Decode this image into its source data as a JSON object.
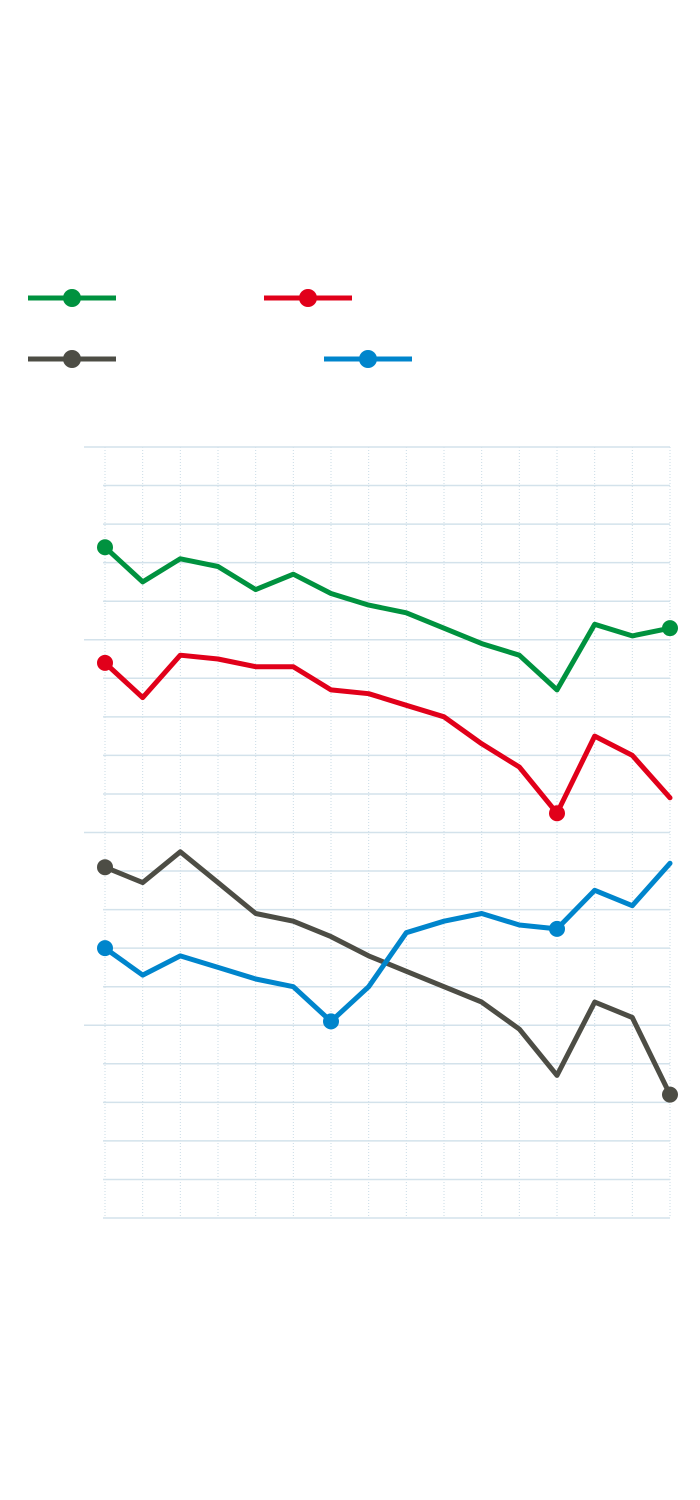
{
  "chart_data": {
    "type": "line",
    "x": [
      1,
      2,
      3,
      4,
      5,
      6,
      7,
      8,
      9,
      10,
      11,
      12,
      13,
      14,
      15,
      16
    ],
    "ylim": [
      0,
      20
    ],
    "grid": true,
    "legend_placement": "top-left",
    "series": [
      {
        "color": "#00923f",
        "values": [
          17.4,
          16.5,
          17.1,
          16.9,
          16.3,
          16.7,
          16.2,
          15.9,
          15.7,
          15.3,
          14.9,
          14.6,
          13.7,
          15.4,
          15.1,
          15.3
        ]
      },
      {
        "color": "#e1001a",
        "values": [
          14.4,
          13.5,
          14.6,
          14.5,
          14.3,
          14.3,
          13.7,
          13.6,
          13.3,
          13.0,
          12.3,
          11.7,
          10.5,
          12.5,
          12.0,
          10.9
        ]
      },
      {
        "color": "#4d4d45",
        "values": [
          9.1,
          8.7,
          9.5,
          8.7,
          7.9,
          7.7,
          7.3,
          6.8,
          6.4,
          6.0,
          5.6,
          4.9,
          3.7,
          5.6,
          5.2,
          3.2
        ]
      },
      {
        "color": "#0085cc",
        "values": [
          7.0,
          6.3,
          6.8,
          6.5,
          6.2,
          6.0,
          5.1,
          6.0,
          7.4,
          7.7,
          7.9,
          7.6,
          7.5,
          8.5,
          8.1,
          9.2
        ]
      }
    ]
  }
}
